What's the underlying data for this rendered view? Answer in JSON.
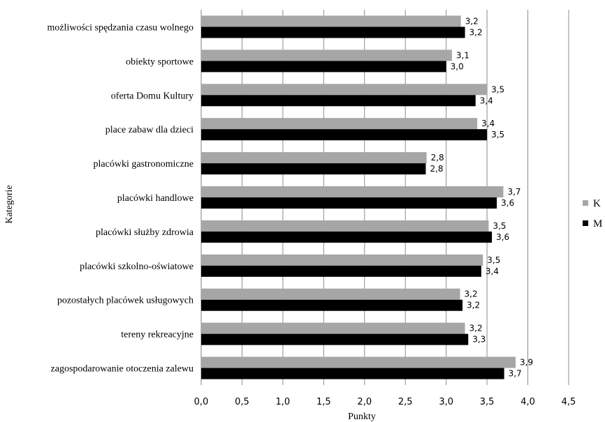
{
  "chart_data": {
    "type": "bar",
    "orientation": "horizontal",
    "title": "",
    "xlabel": "Punkty",
    "ylabel": "Kategorie",
    "xlim": [
      0,
      4.5
    ],
    "xticks": [
      "0,0",
      "0,5",
      "1,0",
      "1,5",
      "2,0",
      "2,5",
      "3,0",
      "3,5",
      "4,0",
      "4,5"
    ],
    "grid": true,
    "legend_position": "right",
    "categories": [
      "możliwości spędzania czasu wolnego",
      "obiekty sportowe",
      "oferta Domu Kultury",
      "place zabaw dla dzieci",
      "placówki gastronomiczne",
      "placówki handlowe",
      "placówki służby zdrowia",
      "placówki szkolno-oświatowe",
      "pozostałych placówek usługowych",
      "tereny rekreacyjne",
      "zagospodarowanie otoczenia zalewu"
    ],
    "series": [
      {
        "name": "K",
        "color": "#a6a6a6",
        "values": [
          3.18,
          3.07,
          3.5,
          3.38,
          2.76,
          3.7,
          3.52,
          3.45,
          3.17,
          3.23,
          3.85
        ],
        "labels": [
          "3,2",
          "3,1",
          "3,5",
          "3,4",
          "2,8",
          "3,7",
          "3,5",
          "3,5",
          "3,2",
          "3,2",
          "3,9"
        ]
      },
      {
        "name": "M",
        "color": "#000000",
        "values": [
          3.23,
          3.0,
          3.36,
          3.5,
          2.75,
          3.62,
          3.56,
          3.43,
          3.2,
          3.27,
          3.71
        ],
        "labels": [
          "3,2",
          "3,0",
          "3,4",
          "3,5",
          "2,8",
          "3,6",
          "3,6",
          "3,4",
          "3,2",
          "3,3",
          "3,7"
        ]
      }
    ]
  }
}
